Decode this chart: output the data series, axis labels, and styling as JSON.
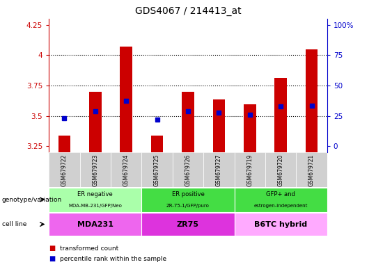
{
  "title": "GDS4067 / 214413_at",
  "samples": [
    "GSM679722",
    "GSM679723",
    "GSM679724",
    "GSM679725",
    "GSM679726",
    "GSM679727",
    "GSM679719",
    "GSM679720",
    "GSM679721"
  ],
  "bar_values": [
    3.335,
    3.695,
    4.07,
    3.335,
    3.695,
    3.635,
    3.595,
    3.81,
    4.05
  ],
  "percentile_values": [
    3.478,
    3.535,
    3.625,
    3.468,
    3.538,
    3.528,
    3.508,
    3.575,
    3.585
  ],
  "ylim": [
    3.2,
    4.3
  ],
  "yticks": [
    3.25,
    3.5,
    3.75,
    4.0,
    4.25
  ],
  "ytick_labels": [
    "3.25",
    "3.5",
    "3.75",
    "4",
    "4.25"
  ],
  "y2ticks": [
    0,
    25,
    50,
    75,
    100
  ],
  "y2tick_labels": [
    "0",
    "25",
    "50",
    "75",
    "100%"
  ],
  "bar_color": "#cc0000",
  "percentile_color": "#0000cc",
  "bar_bottom": 3.2,
  "hlines": [
    3.5,
    3.75,
    4.0
  ],
  "groups": [
    {
      "label": "ER negative",
      "sublabel": "MDA-MB-231/GFP/Neo",
      "start": 0,
      "end": 3
    },
    {
      "label": "ER positive",
      "sublabel": "ZR-75-1/GFP/puro",
      "start": 3,
      "end": 6
    },
    {
      "label": "GFP+ and",
      "sublabel": "estrogen-independent",
      "start": 6,
      "end": 9
    }
  ],
  "group_colors": [
    "#aaffaa",
    "#44dd44",
    "#44dd44"
  ],
  "cell_lines": [
    {
      "label": "MDA231",
      "start": 0,
      "end": 3
    },
    {
      "label": "ZR75",
      "start": 3,
      "end": 6
    },
    {
      "label": "B6TC hybrid",
      "start": 6,
      "end": 9
    }
  ],
  "cell_colors": [
    "#ee66ee",
    "#dd33dd",
    "#ffaaff"
  ],
  "row_labels": [
    "genotype/variation",
    "cell line"
  ],
  "legend_items": [
    "transformed count",
    "percentile rank within the sample"
  ],
  "left_axis_color": "#cc0000",
  "right_axis_color": "#0000cc"
}
